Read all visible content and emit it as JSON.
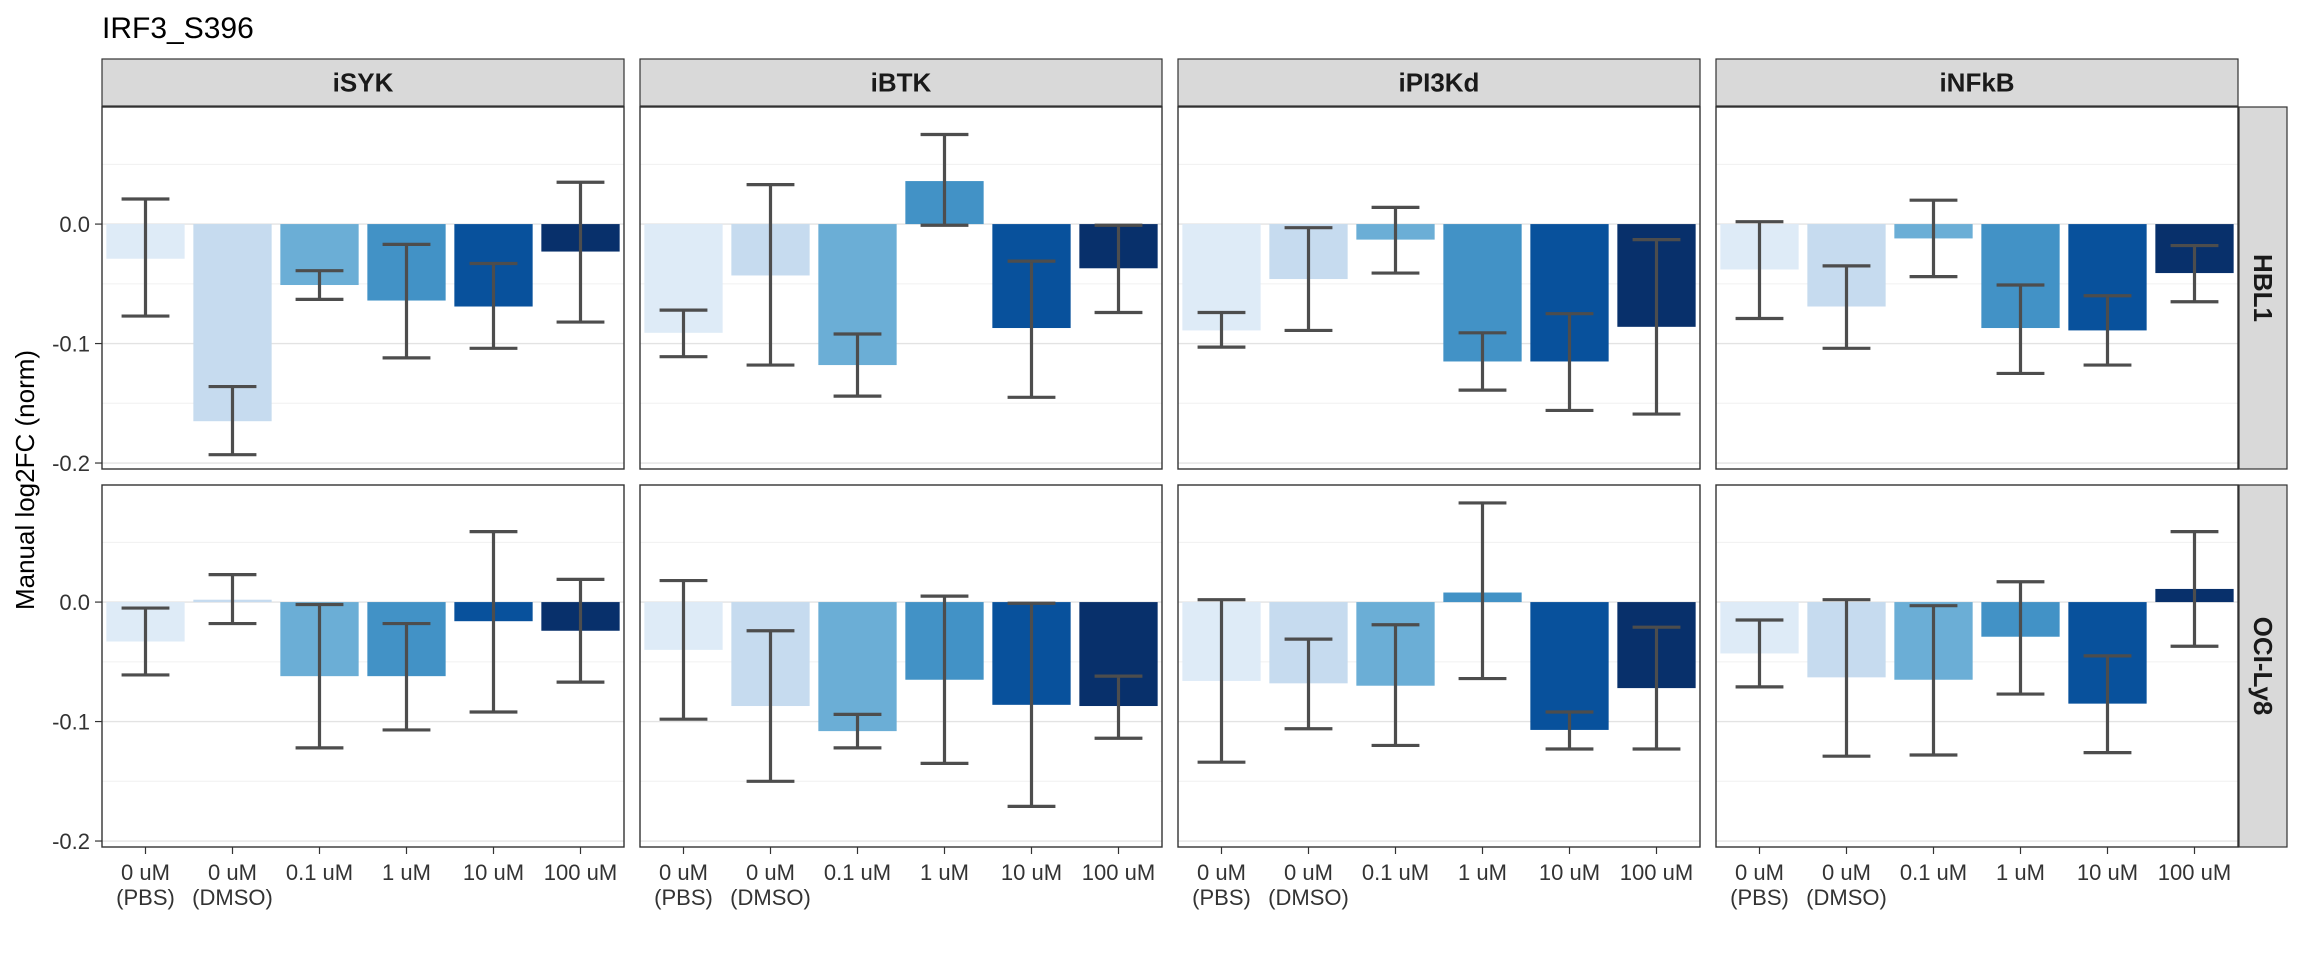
{
  "title": "IRF3_S396",
  "colors": [
    "#deebf7",
    "#c6dbef",
    "#6baed6",
    "#4292c6",
    "#08519c",
    "#08306b"
  ],
  "chart_data": {
    "type": "bar",
    "facet_type": "grid",
    "title": "IRF3_S396",
    "xlabel": "",
    "ylabel": "Manual log2FC (norm)",
    "ylim": [
      -0.205,
      0.098
    ],
    "yticks": [
      -0.2,
      -0.1,
      0.0
    ],
    "ytick_labels": [
      "-0.2",
      "-0.1",
      "0.0"
    ],
    "grid": true,
    "legend": "none",
    "columns": [
      "iSYK",
      "iBTK",
      "iPI3Kd",
      "iNFkB"
    ],
    "rows": [
      "HBL1",
      "OCI-Ly8"
    ],
    "categories": [
      [
        "0 uM",
        "(PBS)"
      ],
      [
        "0 uM",
        "(DMSO)"
      ],
      [
        "0.1 uM"
      ],
      [
        "1 uM"
      ],
      [
        "10 uM"
      ],
      [
        "100 uM"
      ]
    ],
    "panels": [
      {
        "row": "HBL1",
        "column": "iSYK",
        "values": [
          -0.029,
          -0.165,
          -0.051,
          -0.064,
          -0.069,
          -0.023
        ],
        "err_low": [
          -0.077,
          -0.193,
          -0.063,
          -0.112,
          -0.104,
          -0.082
        ],
        "err_high": [
          0.021,
          -0.136,
          -0.039,
          -0.017,
          -0.033,
          0.035
        ]
      },
      {
        "row": "HBL1",
        "column": "iBTK",
        "values": [
          -0.091,
          -0.043,
          -0.118,
          0.036,
          -0.087,
          -0.037
        ],
        "err_low": [
          -0.111,
          -0.118,
          -0.144,
          -0.001,
          -0.145,
          -0.074
        ],
        "err_high": [
          -0.072,
          0.033,
          -0.092,
          0.075,
          -0.031,
          -0.001
        ]
      },
      {
        "row": "HBL1",
        "column": "iPI3Kd",
        "values": [
          -0.089,
          -0.046,
          -0.013,
          -0.115,
          -0.115,
          -0.086
        ],
        "err_low": [
          -0.103,
          -0.089,
          -0.041,
          -0.139,
          -0.156,
          -0.159
        ],
        "err_high": [
          -0.074,
          -0.003,
          0.014,
          -0.091,
          -0.075,
          -0.013
        ]
      },
      {
        "row": "HBL1",
        "column": "iNFkB",
        "values": [
          -0.038,
          -0.069,
          -0.012,
          -0.087,
          -0.089,
          -0.041
        ],
        "err_low": [
          -0.079,
          -0.104,
          -0.044,
          -0.125,
          -0.118,
          -0.065
        ],
        "err_high": [
          0.002,
          -0.035,
          0.02,
          -0.051,
          -0.06,
          -0.018
        ]
      },
      {
        "row": "OCI-Ly8",
        "column": "iSYK",
        "values": [
          -0.033,
          0.002,
          -0.062,
          -0.062,
          -0.016,
          -0.024
        ],
        "err_low": [
          -0.061,
          -0.018,
          -0.122,
          -0.107,
          -0.092,
          -0.067
        ],
        "err_high": [
          -0.005,
          0.023,
          -0.002,
          -0.018,
          0.059,
          0.019
        ]
      },
      {
        "row": "OCI-Ly8",
        "column": "iBTK",
        "values": [
          -0.04,
          -0.087,
          -0.108,
          -0.065,
          -0.086,
          -0.087
        ],
        "err_low": [
          -0.098,
          -0.15,
          -0.122,
          -0.135,
          -0.171,
          -0.114
        ],
        "err_high": [
          0.018,
          -0.024,
          -0.094,
          0.005,
          -0.001,
          -0.062
        ]
      },
      {
        "row": "OCI-Ly8",
        "column": "iPI3Kd",
        "values": [
          -0.066,
          -0.068,
          -0.07,
          0.008,
          -0.107,
          -0.072
        ],
        "err_low": [
          -0.134,
          -0.106,
          -0.12,
          -0.064,
          -0.123,
          -0.123
        ],
        "err_high": [
          0.002,
          -0.031,
          -0.019,
          0.083,
          -0.092,
          -0.021
        ]
      },
      {
        "row": "OCI-Ly8",
        "column": "iNFkB",
        "values": [
          -0.043,
          -0.063,
          -0.065,
          -0.029,
          -0.085,
          0.011
        ],
        "err_low": [
          -0.071,
          -0.129,
          -0.128,
          -0.077,
          -0.126,
          -0.037
        ],
        "err_high": [
          -0.015,
          0.002,
          -0.003,
          0.017,
          -0.045,
          0.059
        ]
      }
    ]
  }
}
